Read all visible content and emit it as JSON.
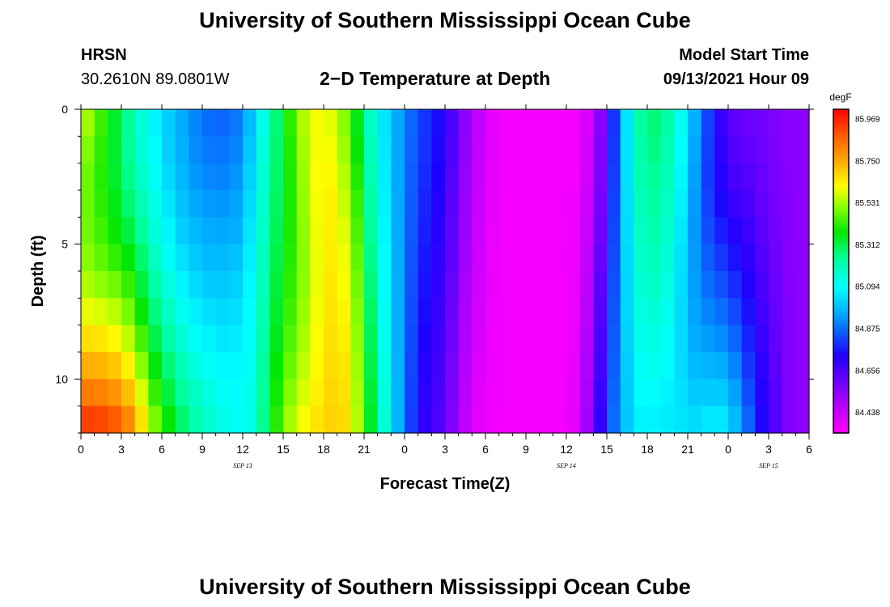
{
  "header": {
    "title_top": "University of Southern Mississippi Ocean Cube",
    "title_bottom": "University of Southern Mississippi Ocean Cube",
    "station": "HRSN",
    "coords": "30.2610N  89.0801W",
    "subtitle": "2−D Temperature at Depth",
    "model_start_label": "Model Start Time",
    "model_start_value": "09/13/2021 Hour 09"
  },
  "chart_data": {
    "type": "heatmap",
    "title": "2−D Temperature at Depth",
    "xlabel": "Forecast Time(Z)",
    "ylabel": "Depth (ft)",
    "x_hours_range": [
      0,
      54
    ],
    "y_range": [
      0,
      12
    ],
    "x_tick_labels": [
      "0",
      "3",
      "6",
      "9",
      "12",
      "15",
      "18",
      "21",
      "0",
      "3",
      "6",
      "9",
      "12",
      "15",
      "18",
      "21",
      "0",
      "3",
      "6"
    ],
    "y_tick_labels": [
      "0",
      "5",
      "10"
    ],
    "y_tick_values": [
      0,
      5,
      10
    ],
    "day_labels": [
      "SEP 13",
      "SEP 14",
      "SEP 15"
    ],
    "day_label_hours": [
      12,
      36,
      51
    ],
    "colorbar": {
      "unit": "degF",
      "min": 84.33,
      "max": 86.02,
      "tick_labels": [
        "85.969",
        "85.750",
        "85.531",
        "85.312",
        "85.094",
        "84.875",
        "84.656",
        "84.438"
      ],
      "tick_values": [
        85.969,
        85.75,
        85.531,
        85.312,
        85.094,
        84.875,
        84.656,
        84.438
      ]
    },
    "time_step_hours": 1,
    "depth_step_ft": 1,
    "surface_profile_degF": [
      85.6,
      85.5,
      85.4,
      85.3,
      85.2,
      85.1,
      85.05,
      84.98,
      84.93,
      84.88,
      84.86,
      84.86,
      84.9,
      85.05,
      85.2,
      85.35,
      85.5,
      85.6,
      85.62,
      85.55,
      85.45,
      85.25,
      85.1,
      85.0,
      84.9,
      84.83,
      84.78,
      84.72,
      84.6,
      84.5,
      84.4,
      84.36,
      84.35,
      84.35,
      84.35,
      84.35,
      84.35,
      84.35,
      84.45,
      84.65,
      84.95,
      85.15,
      85.3,
      85.25,
      85.2,
      85.05,
      84.9,
      84.75,
      84.65,
      84.6,
      84.6,
      84.58,
      84.56,
      84.55
    ],
    "bottom_profile_degF": [
      85.98,
      85.97,
      85.96,
      85.9,
      85.8,
      85.6,
      85.45,
      85.35,
      85.25,
      85.2,
      85.15,
      85.12,
      85.1,
      85.15,
      85.35,
      85.5,
      85.6,
      85.65,
      85.68,
      85.7,
      85.65,
      85.45,
      85.25,
      85.05,
      84.9,
      84.72,
      84.68,
      84.62,
      84.5,
      84.4,
      84.36,
      84.35,
      84.35,
      84.35,
      84.35,
      84.35,
      84.35,
      84.4,
      84.62,
      84.8,
      84.95,
      85.05,
      85.08,
      85.05,
      85.06,
      85.05,
      85.05,
      85.1,
      85.05,
      84.95,
      84.8,
      84.7,
      84.6,
      84.55
    ],
    "curve_transition_hours": [
      [
        0,
        8
      ],
      [
        3,
        8
      ],
      [
        6,
        10
      ],
      [
        9,
        12
      ],
      [
        12,
        13
      ],
      [
        14,
        14
      ],
      [
        16,
        14
      ],
      [
        18,
        16
      ],
      [
        20,
        19
      ],
      [
        22,
        22
      ],
      [
        24,
        24
      ],
      [
        26,
        26
      ],
      [
        28,
        28
      ],
      [
        30,
        30
      ],
      [
        34,
        34
      ],
      [
        38,
        38
      ],
      [
        40,
        40
      ],
      [
        42,
        42
      ],
      [
        44,
        45
      ],
      [
        46,
        48
      ],
      [
        48,
        50
      ],
      [
        50,
        51
      ],
      [
        52,
        52
      ],
      [
        54,
        54
      ]
    ]
  }
}
